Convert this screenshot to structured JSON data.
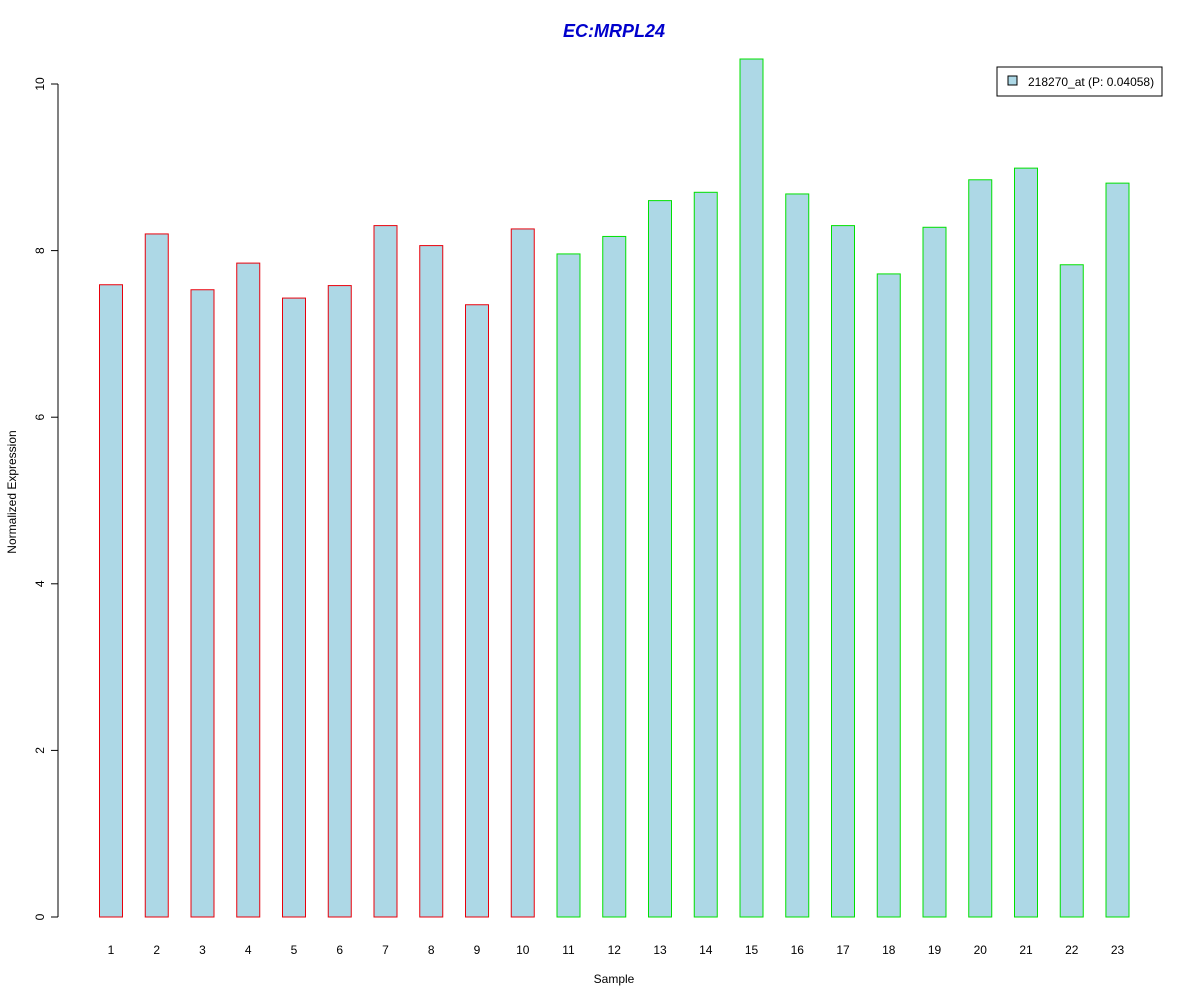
{
  "chart_data": {
    "type": "bar",
    "title": "EC:MRPL24",
    "xlabel": "Sample",
    "ylabel": "Normalized Expression",
    "ylim": [
      0,
      10
    ],
    "yticks": [
      0,
      2,
      4,
      6,
      8,
      10
    ],
    "grid": false,
    "legend_position": "top-right",
    "categories": [
      "1",
      "2",
      "3",
      "4",
      "5",
      "6",
      "7",
      "8",
      "9",
      "10",
      "11",
      "12",
      "13",
      "14",
      "15",
      "16",
      "17",
      "18",
      "19",
      "20",
      "21",
      "22",
      "23"
    ],
    "series": [
      {
        "name": "218270_at (P: 0.04058)",
        "values": [
          7.59,
          8.2,
          7.53,
          7.85,
          7.43,
          7.58,
          8.3,
          8.06,
          7.35,
          8.26,
          7.96,
          8.17,
          8.6,
          8.7,
          10.3,
          8.68,
          8.3,
          7.72,
          8.28,
          8.85,
          8.99,
          7.83,
          8.81
        ]
      }
    ],
    "groups": [
      {
        "border_color": "#e8000b",
        "members": [
          1,
          2,
          3,
          4,
          5,
          6,
          7,
          8,
          9,
          10
        ]
      },
      {
        "border_color": "#00e000",
        "members": [
          11,
          12,
          13,
          14,
          15,
          16,
          17,
          18,
          19,
          20,
          21,
          22,
          23
        ]
      }
    ],
    "colors": {
      "title": "#0000cc",
      "bar_fill": "#add8e6",
      "axis": "#000000"
    }
  }
}
